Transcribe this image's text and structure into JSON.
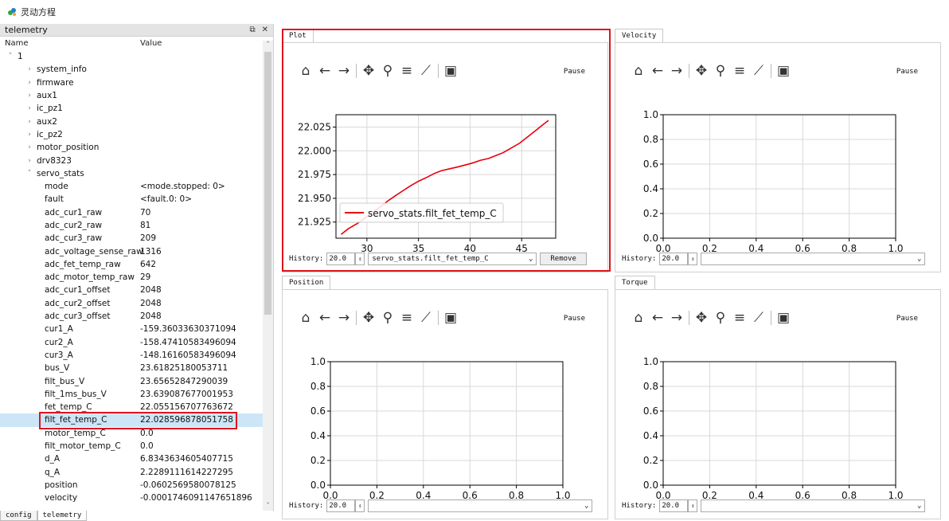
{
  "app": {
    "title": "灵动方程"
  },
  "dock": {
    "title": "telemetry",
    "float_icon": "⧉",
    "close_icon": "✕"
  },
  "tree": {
    "col_name": "Name",
    "col_value": "Value",
    "rows": [
      {
        "name": "1",
        "value": "",
        "depth": 0,
        "arrow": "˅"
      },
      {
        "name": "system_info",
        "value": "",
        "depth": 1,
        "arrow": "›"
      },
      {
        "name": "firmware",
        "value": "",
        "depth": 1,
        "arrow": "›"
      },
      {
        "name": "aux1",
        "value": "",
        "depth": 1,
        "arrow": "›"
      },
      {
        "name": "ic_pz1",
        "value": "",
        "depth": 1,
        "arrow": "›"
      },
      {
        "name": "aux2",
        "value": "",
        "depth": 1,
        "arrow": "›"
      },
      {
        "name": "ic_pz2",
        "value": "",
        "depth": 1,
        "arrow": "›"
      },
      {
        "name": "motor_position",
        "value": "",
        "depth": 1,
        "arrow": "›"
      },
      {
        "name": "drv8323",
        "value": "",
        "depth": 1,
        "arrow": "›"
      },
      {
        "name": "servo_stats",
        "value": "",
        "depth": 1,
        "arrow": "˅"
      },
      {
        "name": "mode",
        "value": "<mode.stopped: 0>",
        "depth": 2,
        "arrow": ""
      },
      {
        "name": "fault",
        "value": "<fault.0: 0>",
        "depth": 2,
        "arrow": ""
      },
      {
        "name": "adc_cur1_raw",
        "value": "70",
        "depth": 2,
        "arrow": ""
      },
      {
        "name": "adc_cur2_raw",
        "value": "81",
        "depth": 2,
        "arrow": ""
      },
      {
        "name": "adc_cur3_raw",
        "value": "209",
        "depth": 2,
        "arrow": ""
      },
      {
        "name": "adc_voltage_sense_raw",
        "value": "1316",
        "depth": 2,
        "arrow": ""
      },
      {
        "name": "adc_fet_temp_raw",
        "value": "642",
        "depth": 2,
        "arrow": ""
      },
      {
        "name": "adc_motor_temp_raw",
        "value": "29",
        "depth": 2,
        "arrow": ""
      },
      {
        "name": "adc_cur1_offset",
        "value": "2048",
        "depth": 2,
        "arrow": ""
      },
      {
        "name": "adc_cur2_offset",
        "value": "2048",
        "depth": 2,
        "arrow": ""
      },
      {
        "name": "adc_cur3_offset",
        "value": "2048",
        "depth": 2,
        "arrow": ""
      },
      {
        "name": "cur1_A",
        "value": "-159.36033630371094",
        "depth": 2,
        "arrow": ""
      },
      {
        "name": "cur2_A",
        "value": "-158.47410583496094",
        "depth": 2,
        "arrow": ""
      },
      {
        "name": "cur3_A",
        "value": "-148.16160583496094",
        "depth": 2,
        "arrow": ""
      },
      {
        "name": "bus_V",
        "value": "23.61825180053711",
        "depth": 2,
        "arrow": ""
      },
      {
        "name": "filt_bus_V",
        "value": "23.65652847290039",
        "depth": 2,
        "arrow": ""
      },
      {
        "name": "filt_1ms_bus_V",
        "value": "23.639087677001953",
        "depth": 2,
        "arrow": ""
      },
      {
        "name": "fet_temp_C",
        "value": "22.055156707763672",
        "depth": 2,
        "arrow": ""
      },
      {
        "name": "filt_fet_temp_C",
        "value": "22.028596878051758",
        "depth": 2,
        "arrow": "",
        "selected": true
      },
      {
        "name": "motor_temp_C",
        "value": "0.0",
        "depth": 2,
        "arrow": ""
      },
      {
        "name": "filt_motor_temp_C",
        "value": "0.0",
        "depth": 2,
        "arrow": ""
      },
      {
        "name": "d_A",
        "value": "6.8343634605407715",
        "depth": 2,
        "arrow": ""
      },
      {
        "name": "q_A",
        "value": "2.2289111614227295",
        "depth": 2,
        "arrow": ""
      },
      {
        "name": "position",
        "value": "-0.0602569580078125",
        "depth": 2,
        "arrow": ""
      },
      {
        "name": "velocity",
        "value": "-0.0001746091147651896",
        "depth": 2,
        "arrow": ""
      }
    ]
  },
  "bottom_tabs": [
    {
      "label": "config",
      "active": false
    },
    {
      "label": "telemetry",
      "active": true
    }
  ],
  "panels": [
    {
      "tab": "Plot",
      "pause": "Pause",
      "history_label": "History:",
      "history_value": "20.0",
      "combo": "servo_stats.filt_fet_temp_C",
      "remove": "Remove"
    },
    {
      "tab": "Velocity",
      "pause": "Pause",
      "history_label": "History:",
      "history_value": "20.0",
      "combo": "",
      "remove": ""
    },
    {
      "tab": "Position",
      "pause": "Pause",
      "history_label": "History:",
      "history_value": "20.0",
      "combo": "",
      "remove": ""
    },
    {
      "tab": "Torque",
      "pause": "Pause",
      "history_label": "History:",
      "history_value": "20.0",
      "combo": "",
      "remove": ""
    }
  ],
  "toolbar_icons": [
    "home-icon",
    "back-arrow-icon",
    "forward-arrow-icon",
    "pan-icon",
    "zoom-icon",
    "configure-subplots-icon",
    "edit-axis-icon",
    "save-icon"
  ],
  "chart_data": [
    {
      "type": "line",
      "panel": "Plot",
      "xlim": [
        27,
        48.3
      ],
      "ylim": [
        21.908,
        22.038
      ],
      "xticks": [
        "30",
        "35",
        "40",
        "45"
      ],
      "yticks": [
        "22.025",
        "22.000",
        "21.975",
        "21.950",
        "21.925"
      ],
      "ytick_values": [
        22.025,
        22.0,
        21.975,
        21.95,
        21.925
      ],
      "xtick_values": [
        30,
        35,
        40,
        45
      ],
      "grid": true,
      "legend": "lower-left",
      "series": [
        {
          "name": "servo_stats.filt_fet_temp_C",
          "color": "#e8000b",
          "x": [
            27.5,
            28.2,
            29.0,
            29.8,
            30.5,
            31.2,
            32.0,
            32.8,
            33.5,
            34.2,
            35.0,
            35.8,
            36.5,
            37.2,
            38.0,
            38.8,
            39.5,
            40.2,
            41.0,
            41.8,
            42.5,
            43.2,
            44.0,
            44.8,
            45.5,
            46.2,
            47.0,
            47.6
          ],
          "y": [
            21.912,
            21.918,
            21.923,
            21.929,
            21.935,
            21.94,
            21.947,
            21.953,
            21.958,
            21.963,
            21.968,
            21.972,
            21.976,
            21.979,
            21.981,
            21.983,
            21.985,
            21.987,
            21.99,
            21.992,
            21.995,
            21.998,
            22.003,
            22.008,
            22.014,
            22.02,
            22.027,
            22.032
          ]
        }
      ]
    },
    {
      "type": "line",
      "panel": "Velocity",
      "xlim": [
        0,
        1
      ],
      "ylim": [
        0,
        1
      ],
      "xticks": [
        "0.0",
        "0.2",
        "0.4",
        "0.6",
        "0.8",
        "1.0"
      ],
      "yticks": [
        "1.0",
        "0.8",
        "0.6",
        "0.4",
        "0.2",
        "0.0"
      ],
      "grid": true,
      "series": []
    },
    {
      "type": "line",
      "panel": "Position",
      "xlim": [
        0,
        1
      ],
      "ylim": [
        0,
        1
      ],
      "xticks": [
        "0.0",
        "0.2",
        "0.4",
        "0.6",
        "0.8",
        "1.0"
      ],
      "yticks": [
        "1.0",
        "0.8",
        "0.6",
        "0.4",
        "0.2",
        "0.0"
      ],
      "grid": true,
      "series": []
    },
    {
      "type": "line",
      "panel": "Torque",
      "xlim": [
        0,
        1
      ],
      "ylim": [
        0,
        1
      ],
      "xticks": [
        "0.0",
        "0.2",
        "0.4",
        "0.6",
        "0.8",
        "1.0"
      ],
      "yticks": [
        "1.0",
        "0.8",
        "0.6",
        "0.4",
        "0.2",
        "0.0"
      ],
      "grid": true,
      "series": []
    }
  ]
}
